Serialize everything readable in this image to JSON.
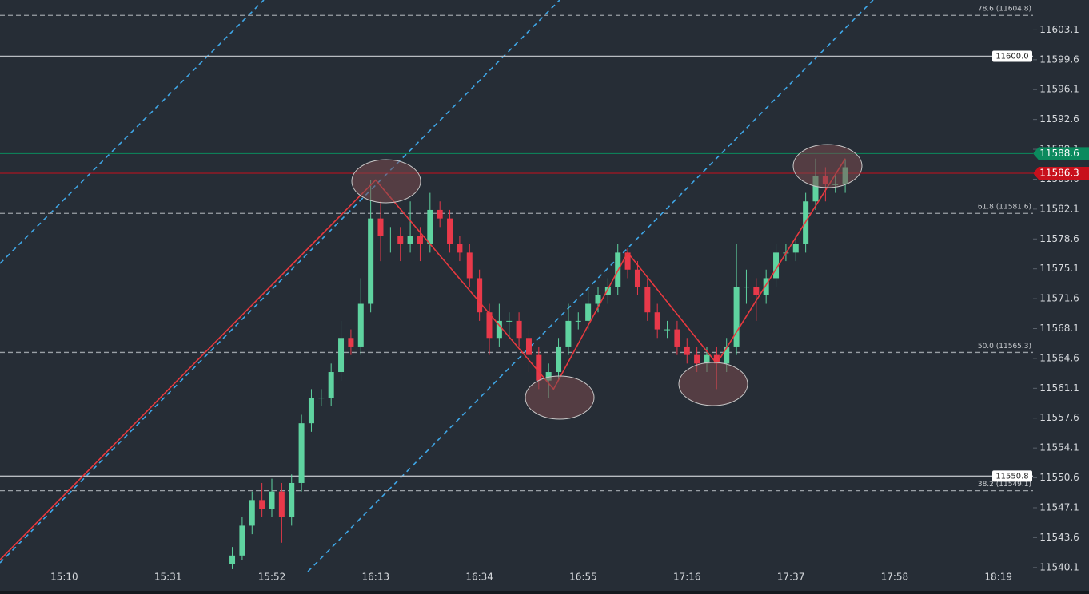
{
  "chart_data": {
    "type": "candlestick",
    "up_color": "#5fd3a0",
    "down_color": "#e8394a",
    "xlim": [
      "14:57",
      "18:26"
    ],
    "xticks": [
      "15:10",
      "15:31",
      "15:52",
      "16:13",
      "16:34",
      "16:55",
      "17:16",
      "17:37",
      "17:58",
      "18:19"
    ],
    "ylim": [
      11539.8,
      11606.6
    ],
    "yticks": [
      11603.1,
      11599.6,
      11596.1,
      11592.6,
      11589.1,
      11585.6,
      11582.1,
      11578.6,
      11575.1,
      11571.6,
      11568.1,
      11564.6,
      11561.1,
      11557.6,
      11554.1,
      11550.6,
      11547.1,
      11543.6,
      11540.1
    ],
    "x": [
      "15:44",
      "15:46",
      "15:48",
      "15:50",
      "15:52",
      "15:54",
      "15:56",
      "15:58",
      "16:00",
      "16:02",
      "16:04",
      "16:06",
      "16:08",
      "16:10",
      "16:12",
      "16:14",
      "16:16",
      "16:18",
      "16:20",
      "16:22",
      "16:24",
      "16:26",
      "16:28",
      "16:30",
      "16:32",
      "16:34",
      "16:36",
      "16:38",
      "16:40",
      "16:42",
      "16:44",
      "16:46",
      "16:48",
      "16:50",
      "16:52",
      "16:54",
      "16:56",
      "16:58",
      "17:00",
      "17:02",
      "17:04",
      "17:06",
      "17:08",
      "17:10",
      "17:12",
      "17:14",
      "17:16",
      "17:18",
      "17:20",
      "17:22",
      "17:24",
      "17:26",
      "17:28",
      "17:30",
      "17:32",
      "17:34",
      "17:36",
      "17:38",
      "17:40",
      "17:42",
      "17:44",
      "17:46",
      "17:48"
    ],
    "open": [
      11540.5,
      11541.5,
      11545,
      11548,
      11547,
      11549,
      11546,
      11550,
      11557,
      11560,
      11560,
      11563,
      11567,
      11566,
      11571,
      11581,
      11579,
      11579,
      11578,
      11579,
      11578,
      11582,
      11581,
      11578,
      11577,
      11574,
      11570,
      11567,
      11569,
      11569,
      11567,
      11565,
      11562,
      11563,
      11566,
      11569,
      11569,
      11571,
      11572,
      11573,
      11577,
      11575,
      11573,
      11570,
      11568,
      11568,
      11566,
      11565,
      11564,
      11565,
      11564,
      11566,
      11573,
      11573,
      11572,
      11574,
      11577,
      11577,
      11578,
      11583,
      11586,
      11585,
      11585
    ],
    "high": [
      11542.5,
      11546,
      11549,
      11550,
      11550.5,
      11550,
      11551,
      11558,
      11561,
      11561,
      11564,
      11569,
      11568,
      11574,
      11585.5,
      11583,
      11580,
      11580,
      11583,
      11580,
      11584,
      11583,
      11582,
      11579,
      11578,
      11575,
      11571,
      11571,
      11570,
      11570,
      11568,
      11566,
      11564,
      11567,
      11571,
      11570,
      11573,
      11573,
      11574,
      11578,
      11577.5,
      11576,
      11574,
      11571,
      11569,
      11569,
      11567,
      11566,
      11566,
      11566,
      11567,
      11578,
      11575,
      11574,
      11575,
      11578,
      11578,
      11579,
      11584,
      11588,
      11587,
      11586,
      11588
    ],
    "low": [
      11539.9,
      11541,
      11544,
      11546,
      11546,
      11543,
      11545,
      11549,
      11556,
      11559,
      11559,
      11562,
      11565,
      11565,
      11570,
      11576,
      11577,
      11576,
      11577,
      11576,
      11577,
      11580,
      11577,
      11576,
      11573,
      11569,
      11565,
      11566,
      11567,
      11566,
      11563,
      11561,
      11560,
      11562,
      11565,
      11568,
      11568,
      11570,
      11571,
      11572,
      11574,
      11572,
      11569,
      11567,
      11567,
      11565,
      11564,
      11563,
      11563,
      11561,
      11563,
      11565,
      11571,
      11569,
      11571,
      11573,
      11576,
      11576,
      11577,
      11582,
      11583,
      11584,
      11584
    ],
    "close": [
      11541.5,
      11545,
      11548,
      11547,
      11549,
      11546,
      11550,
      11557,
      11560,
      11560,
      11563,
      11567,
      11566,
      11571,
      11581,
      11579,
      11579,
      11578,
      11579,
      11578,
      11582,
      11581,
      11578,
      11577,
      11574,
      11570,
      11567,
      11569,
      11569,
      11567,
      11565,
      11562,
      11563,
      11566,
      11569,
      11569,
      11571,
      11572,
      11573,
      11577,
      11575,
      11573,
      11570,
      11568,
      11568,
      11566,
      11565,
      11564,
      11565,
      11564,
      11566,
      11573,
      11573,
      11572,
      11574,
      11577,
      11577,
      11578,
      11583,
      11586,
      11585,
      11585,
      11587
    ],
    "levels": [
      {
        "value": 11600,
        "label": "11600.0"
      },
      {
        "value": 11550.8,
        "label": "11550.8"
      }
    ],
    "fib": [
      {
        "value": 11604.8,
        "label": "78.6 (11604.8)"
      },
      {
        "value": 11581.6,
        "label": "61.8 (11581.6)"
      },
      {
        "value": 11565.3,
        "label": "50.0 (11565.3)"
      },
      {
        "value": 11549.1,
        "label": "38.2 (11549.1)"
      }
    ],
    "price_tags": [
      {
        "value": 11588.6,
        "color": "#0b8a5e"
      },
      {
        "value": 11586.3,
        "color": "#c8101c"
      }
    ],
    "zigzag": {
      "x": [
        "14:57",
        "16:13",
        "16:49",
        "17:04",
        "17:22",
        "17:48"
      ],
      "y": [
        11541,
        11585.5,
        11561,
        11577,
        11564,
        11588
      ]
    }
  }
}
